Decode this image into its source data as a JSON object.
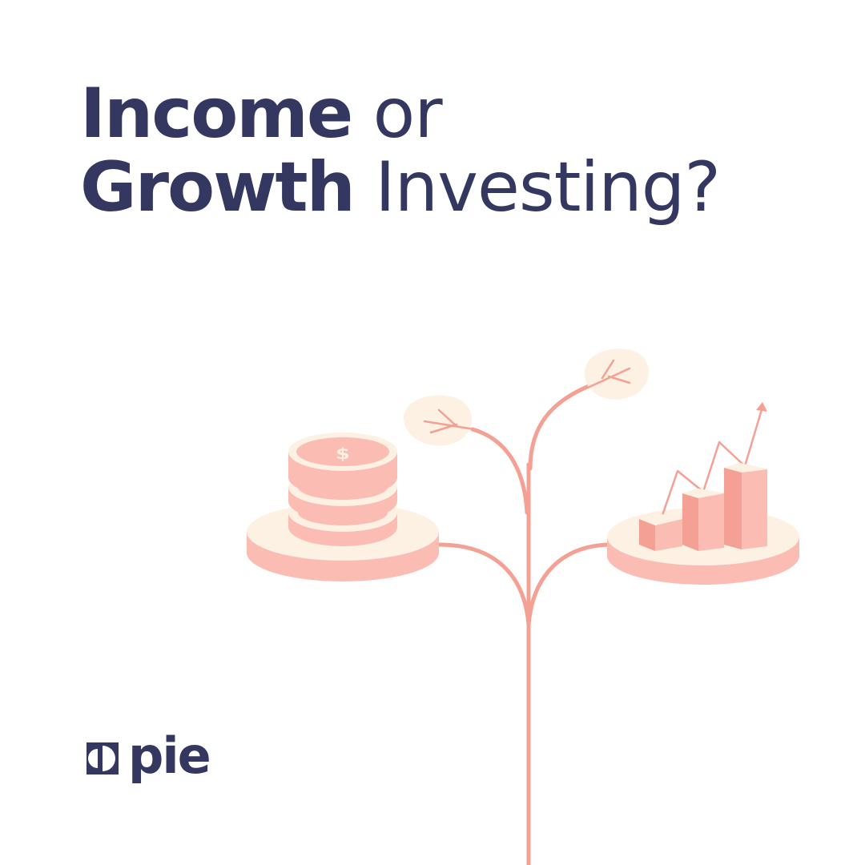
{
  "headline": {
    "line1_strong": "Income",
    "line1_light": " or",
    "line2_strong": "Growth",
    "line2_light": " Investing?"
  },
  "illustration": {
    "coin_symbol": "$",
    "icons": [
      "coin-stack-icon",
      "bar-chart-growth-icon",
      "plant-stem-icon",
      "leaf-icon"
    ]
  },
  "logo": {
    "text": "pie",
    "mark_icon": "pie-logo-mark-icon"
  },
  "colors": {
    "navy": "#343760",
    "salmon": "#f4a094",
    "pink": "#fbbcb4",
    "cream": "#fdf1e3"
  }
}
